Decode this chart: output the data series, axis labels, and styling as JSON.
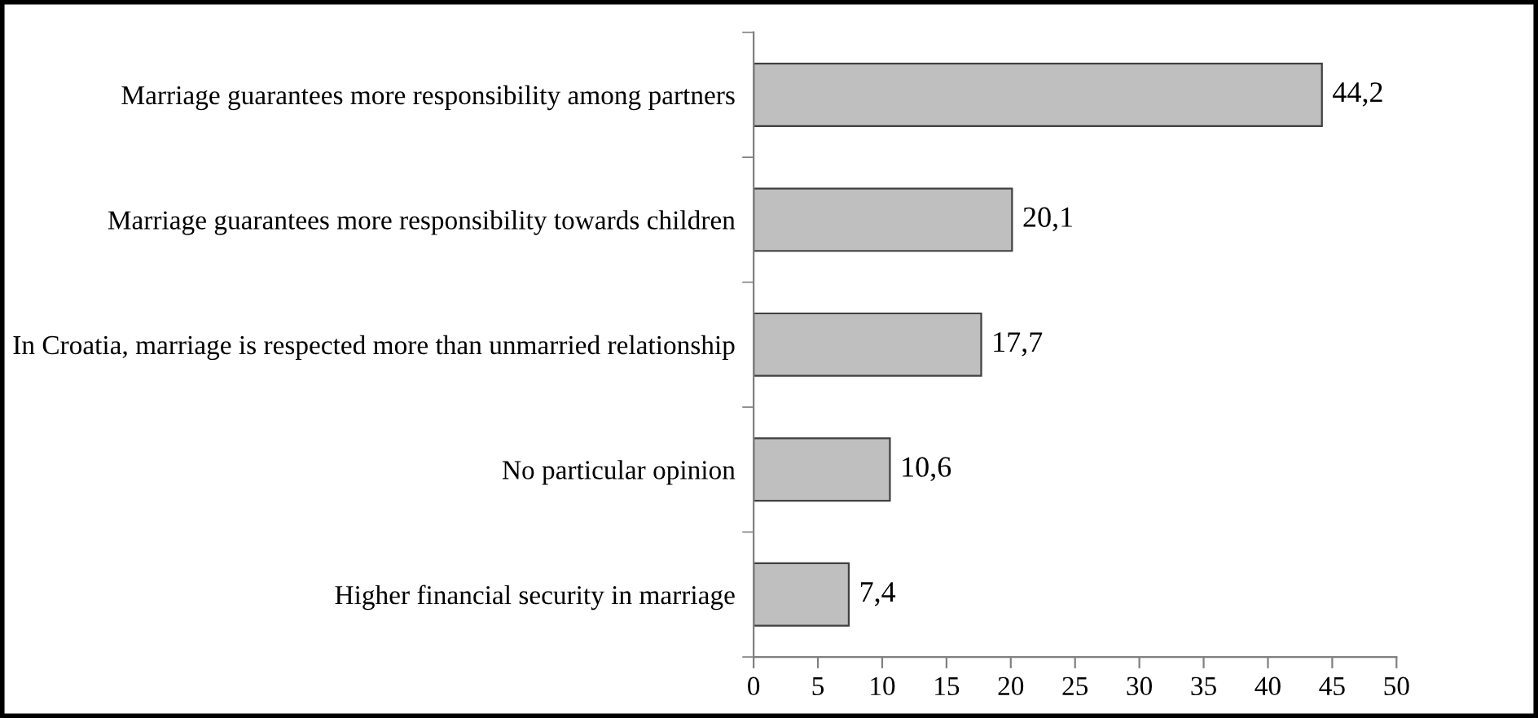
{
  "chart_data": {
    "type": "bar",
    "orientation": "horizontal",
    "categories": [
      "Marriage guarantees more responsibility among partners",
      "Marriage guarantees more responsibility towards children",
      "In Croatia, marriage is respected more than unmarried relationship",
      "No particular opinion",
      "Higher financial security in marriage"
    ],
    "values": [
      44.2,
      20.1,
      17.7,
      10.6,
      7.4
    ],
    "value_labels": [
      "44,2",
      "20,1",
      "17,7",
      "10,6",
      "7,4"
    ],
    "color": "#bfbfbf",
    "xlim": [
      0,
      50
    ],
    "xticks": [
      0,
      5,
      10,
      15,
      20,
      25,
      30,
      35,
      40,
      45,
      50
    ],
    "grid": false,
    "legend": false
  }
}
